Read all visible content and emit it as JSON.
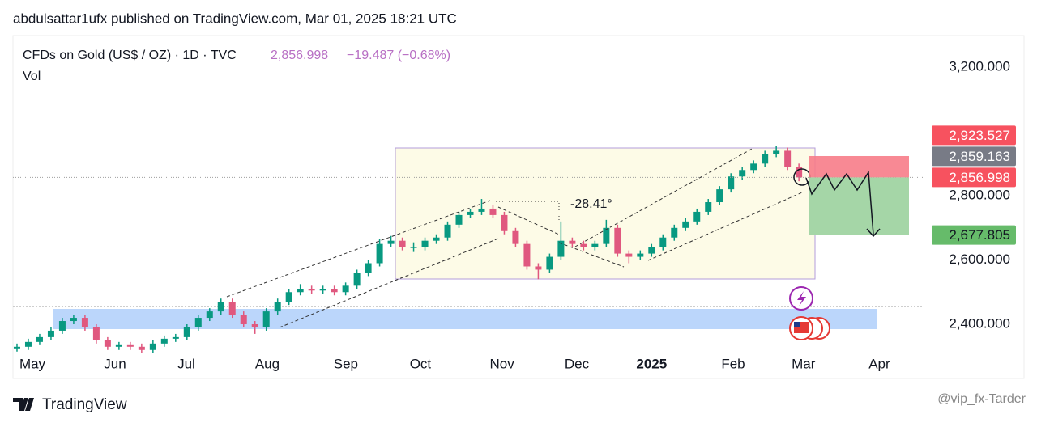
{
  "header": {
    "attribution": "abdulsattar1ufx published on TradingView.com, Mar 01, 2025 18:21 UTC"
  },
  "footer": {
    "brand": "TradingView",
    "watermark": "@vip_fx-Tarder"
  },
  "chart_data": {
    "type": "candlestick",
    "title": "CFDs on Gold (US$ / OZ) · 1D · TVC",
    "legend_price": "2,856.998",
    "legend_change": "−19.487 (−0.68%)",
    "volume_label": "Vol",
    "annotation": "-28.41°",
    "up_color": "#089981",
    "down_color": "#e0587f",
    "xlim": [
      -1.5,
      80
    ],
    "xticks": [
      {
        "value": 1.36,
        "label": "May"
      },
      {
        "value": 8.65,
        "label": "Jun"
      },
      {
        "value": 14.94,
        "label": "Jul"
      },
      {
        "value": 22.09,
        "label": "Aug"
      },
      {
        "value": 29.02,
        "label": "Sep"
      },
      {
        "value": 35.6,
        "label": "Oct"
      },
      {
        "value": 42.8,
        "label": "Nov"
      },
      {
        "value": 49.4,
        "label": "Dec"
      },
      {
        "value": 56.0,
        "label": "2025"
      },
      {
        "value": 63.2,
        "label": "Feb"
      },
      {
        "value": 69.4,
        "label": "Mar"
      },
      {
        "value": 76.1,
        "label": "Apr"
      }
    ],
    "ylim": [
      2327,
      3296
    ],
    "yticks": [
      {
        "value": 2400,
        "label": "2,400.000"
      },
      {
        "value": 2600,
        "label": "2,600.000"
      },
      {
        "value": 2800,
        "label": "2,800.000"
      },
      {
        "value": 3200,
        "label": "3,200.000"
      }
    ],
    "price_labels": [
      {
        "value": 2923.527,
        "label": "2,923.527",
        "color": "#f7525f"
      },
      {
        "value": 2859.163,
        "label": "2,859.163",
        "color": "#787b86"
      },
      {
        "value": 2856.998,
        "label": "2,856.998",
        "color": "#f7525f"
      },
      {
        "value": 2677.805,
        "label": "2,677.805",
        "color": "#66bb6a"
      }
    ],
    "candles": [
      [
        2325,
        2340,
        2315,
        2330
      ],
      [
        2330,
        2355,
        2320,
        2345
      ],
      [
        2345,
        2370,
        2335,
        2360
      ],
      [
        2360,
        2390,
        2350,
        2380
      ],
      [
        2380,
        2420,
        2370,
        2410
      ],
      [
        2410,
        2430,
        2400,
        2420
      ],
      [
        2420,
        2430,
        2380,
        2390
      ],
      [
        2390,
        2400,
        2340,
        2350
      ],
      [
        2350,
        2360,
        2320,
        2330
      ],
      [
        2330,
        2345,
        2320,
        2335
      ],
      [
        2335,
        2345,
        2320,
        2330
      ],
      [
        2330,
        2340,
        2310,
        2320
      ],
      [
        2320,
        2350,
        2310,
        2340
      ],
      [
        2340,
        2365,
        2330,
        2355
      ],
      [
        2355,
        2370,
        2345,
        2360
      ],
      [
        2360,
        2400,
        2350,
        2390
      ],
      [
        2390,
        2430,
        2380,
        2420
      ],
      [
        2420,
        2450,
        2410,
        2440
      ],
      [
        2440,
        2480,
        2430,
        2470
      ],
      [
        2470,
        2480,
        2420,
        2430
      ],
      [
        2430,
        2440,
        2390,
        2400
      ],
      [
        2400,
        2410,
        2370,
        2390
      ],
      [
        2390,
        2450,
        2380,
        2440
      ],
      [
        2440,
        2480,
        2430,
        2470
      ],
      [
        2470,
        2510,
        2460,
        2500
      ],
      [
        2500,
        2525,
        2490,
        2510
      ],
      [
        2510,
        2520,
        2495,
        2505
      ],
      [
        2505,
        2520,
        2495,
        2510
      ],
      [
        2510,
        2520,
        2490,
        2500
      ],
      [
        2500,
        2530,
        2490,
        2520
      ],
      [
        2520,
        2570,
        2510,
        2560
      ],
      [
        2560,
        2600,
        2550,
        2590
      ],
      [
        2590,
        2665,
        2580,
        2650
      ],
      [
        2650,
        2675,
        2640,
        2660
      ],
      [
        2660,
        2670,
        2630,
        2640
      ],
      [
        2640,
        2655,
        2625,
        2640
      ],
      [
        2640,
        2670,
        2630,
        2660
      ],
      [
        2660,
        2680,
        2650,
        2670
      ],
      [
        2670,
        2720,
        2660,
        2710
      ],
      [
        2710,
        2750,
        2700,
        2740
      ],
      [
        2740,
        2760,
        2730,
        2750
      ],
      [
        2750,
        2790,
        2740,
        2760
      ],
      [
        2760,
        2770,
        2730,
        2740
      ],
      [
        2740,
        2750,
        2680,
        2690
      ],
      [
        2690,
        2700,
        2640,
        2650
      ],
      [
        2650,
        2660,
        2570,
        2580
      ],
      [
        2580,
        2590,
        2540,
        2570
      ],
      [
        2570,
        2620,
        2560,
        2610
      ],
      [
        2610,
        2720,
        2600,
        2660
      ],
      [
        2660,
        2670,
        2640,
        2650
      ],
      [
        2650,
        2660,
        2630,
        2640
      ],
      [
        2640,
        2660,
        2630,
        2650
      ],
      [
        2650,
        2725,
        2640,
        2700
      ],
      [
        2700,
        2710,
        2610,
        2620
      ],
      [
        2620,
        2630,
        2590,
        2610
      ],
      [
        2610,
        2630,
        2600,
        2620
      ],
      [
        2620,
        2650,
        2610,
        2640
      ],
      [
        2640,
        2680,
        2630,
        2670
      ],
      [
        2670,
        2710,
        2660,
        2700
      ],
      [
        2700,
        2730,
        2690,
        2720
      ],
      [
        2720,
        2760,
        2710,
        2750
      ],
      [
        2750,
        2790,
        2740,
        2780
      ],
      [
        2780,
        2830,
        2770,
        2820
      ],
      [
        2820,
        2870,
        2810,
        2860
      ],
      [
        2860,
        2890,
        2850,
        2880
      ],
      [
        2880,
        2910,
        2870,
        2900
      ],
      [
        2900,
        2940,
        2890,
        2930
      ],
      [
        2930,
        2955,
        2920,
        2940
      ],
      [
        2940,
        2950,
        2880,
        2890
      ],
      [
        2890,
        2900,
        2845,
        2857
      ]
    ]
  }
}
